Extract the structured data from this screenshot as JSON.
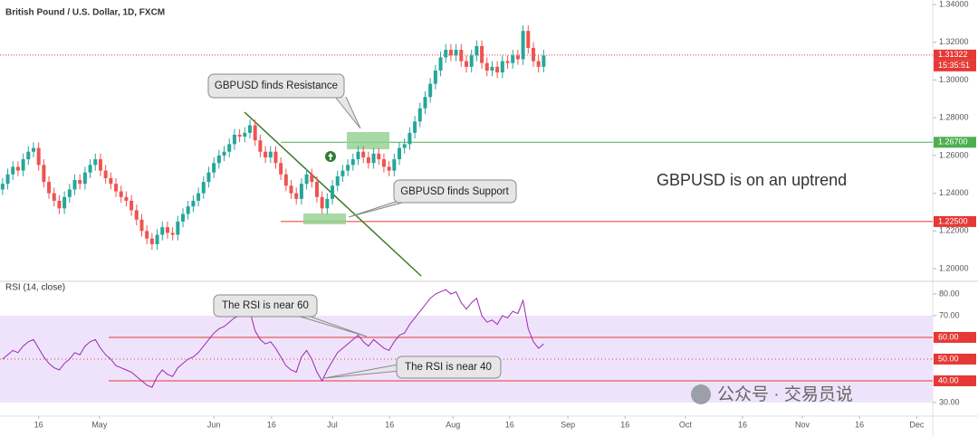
{
  "chart_data": [
    {
      "type": "candlestick",
      "title": "British Pound / U.S. Dollar, 1D, FXCM",
      "up_color": "#26a69a",
      "down_color": "#ef5350",
      "xlim": [
        -0.5,
        180.5
      ],
      "ylim": [
        1.1938,
        1.3424
      ],
      "yticks": [
        {
          "value": 1.34,
          "label": "1.34000"
        },
        {
          "value": 1.32,
          "label": "1.32000"
        },
        {
          "value": 1.3,
          "label": "1.30000"
        },
        {
          "value": 1.28,
          "label": "1.28000"
        },
        {
          "value": 1.26,
          "label": "1.26000"
        },
        {
          "value": 1.24,
          "label": "1.24000"
        },
        {
          "value": 1.22,
          "label": "1.22000"
        },
        {
          "value": 1.2,
          "label": "1.20000"
        }
      ],
      "open": [
        1.242,
        1.245,
        1.25,
        1.254,
        1.252,
        1.258,
        1.262,
        1.264,
        1.255,
        1.246,
        1.24,
        1.236,
        1.232,
        1.238,
        1.242,
        1.247,
        1.245,
        1.251,
        1.255,
        1.258,
        1.252,
        1.248,
        1.245,
        1.241,
        1.238,
        1.236,
        1.231,
        1.226,
        1.22,
        1.216,
        1.213,
        1.218,
        1.222,
        1.219,
        1.218,
        1.225,
        1.229,
        1.233,
        1.236,
        1.24,
        1.246,
        1.251,
        1.256,
        1.26,
        1.262,
        1.266,
        1.271,
        1.27,
        1.272,
        1.276,
        1.268,
        1.262,
        1.259,
        1.262,
        1.256,
        1.25,
        1.244,
        1.24,
        1.237,
        1.245,
        1.25,
        1.246,
        1.238,
        1.232,
        1.237,
        1.244,
        1.249,
        1.252,
        1.255,
        1.258,
        1.262,
        1.259,
        1.256,
        1.261,
        1.258,
        1.254,
        1.252,
        1.258,
        1.264,
        1.266,
        1.272,
        1.278,
        1.285,
        1.291,
        1.298,
        1.305,
        1.312,
        1.316,
        1.313,
        1.316,
        1.31,
        1.307,
        1.313,
        1.318,
        1.309,
        1.305,
        1.307,
        1.304,
        1.31,
        1.309,
        1.313,
        1.311,
        1.326,
        1.317,
        1.31,
        1.307
      ],
      "high": [
        1.248,
        1.253,
        1.257,
        1.257,
        1.261,
        1.265,
        1.267,
        1.267,
        1.258,
        1.249,
        1.243,
        1.239,
        1.241,
        1.245,
        1.25,
        1.25,
        1.254,
        1.258,
        1.261,
        1.261,
        1.255,
        1.251,
        1.248,
        1.244,
        1.241,
        1.239,
        1.234,
        1.229,
        1.223,
        1.219,
        1.221,
        1.225,
        1.225,
        1.222,
        1.228,
        1.232,
        1.236,
        1.239,
        1.243,
        1.249,
        1.254,
        1.259,
        1.263,
        1.265,
        1.269,
        1.274,
        1.274,
        1.275,
        1.279,
        1.279,
        1.271,
        1.265,
        1.265,
        1.265,
        1.259,
        1.253,
        1.247,
        1.243,
        1.248,
        1.253,
        1.253,
        1.249,
        1.241,
        1.24,
        1.247,
        1.252,
        1.255,
        1.258,
        1.261,
        1.265,
        1.265,
        1.262,
        1.264,
        1.264,
        1.261,
        1.257,
        1.261,
        1.267,
        1.269,
        1.275,
        1.281,
        1.288,
        1.294,
        1.301,
        1.308,
        1.315,
        1.319,
        1.319,
        1.319,
        1.319,
        1.313,
        1.316,
        1.321,
        1.321,
        1.312,
        1.31,
        1.31,
        1.313,
        1.313,
        1.316,
        1.316,
        1.329,
        1.329,
        1.32,
        1.313,
        1.316
      ],
      "low": [
        1.239,
        1.242,
        1.247,
        1.249,
        1.249,
        1.255,
        1.259,
        1.252,
        1.243,
        1.237,
        1.233,
        1.229,
        1.229,
        1.235,
        1.239,
        1.242,
        1.242,
        1.248,
        1.252,
        1.249,
        1.245,
        1.242,
        1.238,
        1.235,
        1.233,
        1.228,
        1.223,
        1.217,
        1.213,
        1.21,
        1.21,
        1.215,
        1.216,
        1.215,
        1.215,
        1.222,
        1.226,
        1.23,
        1.233,
        1.237,
        1.243,
        1.248,
        1.253,
        1.257,
        1.259,
        1.263,
        1.267,
        1.267,
        1.269,
        1.265,
        1.259,
        1.256,
        1.256,
        1.253,
        1.247,
        1.241,
        1.237,
        1.234,
        1.234,
        1.242,
        1.243,
        1.235,
        1.229,
        1.229,
        1.234,
        1.241,
        1.246,
        1.249,
        1.252,
        1.255,
        1.256,
        1.253,
        1.253,
        1.255,
        1.251,
        1.249,
        1.249,
        1.255,
        1.261,
        1.263,
        1.269,
        1.275,
        1.282,
        1.288,
        1.295,
        1.302,
        1.309,
        1.31,
        1.31,
        1.307,
        1.304,
        1.304,
        1.31,
        1.306,
        1.302,
        1.302,
        1.301,
        1.301,
        1.306,
        1.306,
        1.308,
        1.308,
        1.314,
        1.307,
        1.304,
        1.304
      ],
      "close": [
        1.245,
        1.25,
        1.254,
        1.252,
        1.258,
        1.262,
        1.264,
        1.255,
        1.246,
        1.24,
        1.236,
        1.232,
        1.238,
        1.242,
        1.247,
        1.245,
        1.251,
        1.255,
        1.258,
        1.252,
        1.248,
        1.245,
        1.241,
        1.238,
        1.236,
        1.231,
        1.226,
        1.22,
        1.216,
        1.213,
        1.218,
        1.222,
        1.219,
        1.218,
        1.225,
        1.229,
        1.233,
        1.236,
        1.24,
        1.246,
        1.251,
        1.256,
        1.26,
        1.262,
        1.266,
        1.271,
        1.27,
        1.272,
        1.276,
        1.268,
        1.262,
        1.259,
        1.262,
        1.256,
        1.25,
        1.244,
        1.24,
        1.237,
        1.245,
        1.25,
        1.246,
        1.238,
        1.232,
        1.237,
        1.244,
        1.249,
        1.252,
        1.255,
        1.258,
        1.262,
        1.259,
        1.256,
        1.261,
        1.258,
        1.254,
        1.252,
        1.258,
        1.264,
        1.266,
        1.272,
        1.278,
        1.285,
        1.291,
        1.298,
        1.305,
        1.312,
        1.316,
        1.313,
        1.316,
        1.31,
        1.307,
        1.313,
        1.318,
        1.309,
        1.305,
        1.307,
        1.304,
        1.31,
        1.309,
        1.313,
        1.311,
        1.326,
        1.317,
        1.31,
        1.307,
        1.313
      ],
      "levels": [
        {
          "value": 1.267,
          "label": "1.26700",
          "color": "#4caf50"
        },
        {
          "value": 1.225,
          "label": "1.22500",
          "color": "#e53935"
        }
      ],
      "last_price": {
        "value": 1.31322,
        "label": "1.31322",
        "color": "#e53935"
      },
      "countdown": "15:35:51",
      "annotations": [
        "GBPUSD finds Resistance",
        "GBPUSD finds Support",
        "GBPUSD is on an uptrend"
      ]
    },
    {
      "type": "line",
      "title": "RSI (14, close)",
      "color": "#9c27b0",
      "xlim": [
        -0.5,
        180.5
      ],
      "ylim": [
        23.75,
        85.4
      ],
      "yticks": [
        {
          "value": 80,
          "label": "80.00"
        },
        {
          "value": 70,
          "label": "70.00"
        },
        {
          "value": 30,
          "label": "30.00"
        }
      ],
      "xticks": [
        {
          "value": 7,
          "label": "16"
        },
        {
          "value": 18.8,
          "label": "May"
        },
        {
          "value": 41,
          "label": "Jun"
        },
        {
          "value": 52.2,
          "label": "16"
        },
        {
          "value": 64,
          "label": "Jul"
        },
        {
          "value": 75.1,
          "label": "16"
        },
        {
          "value": 87.4,
          "label": "Aug"
        },
        {
          "value": 98.4,
          "label": "16"
        },
        {
          "value": 109.7,
          "label": "Sep"
        },
        {
          "value": 120.8,
          "label": "16"
        },
        {
          "value": 132.5,
          "label": "Oct"
        },
        {
          "value": 143.6,
          "label": "16"
        },
        {
          "value": 155.2,
          "label": "Nov"
        },
        {
          "value": 166.3,
          "label": "16"
        },
        {
          "value": 177.4,
          "label": "Dec"
        }
      ],
      "values": [
        50,
        52,
        54,
        53,
        56,
        58,
        59,
        55,
        51,
        48,
        46,
        45,
        48,
        50,
        53,
        52,
        56,
        58,
        59,
        55,
        52,
        50,
        47,
        46,
        45,
        44,
        42,
        40,
        38,
        37,
        42,
        45,
        43,
        42,
        46,
        48,
        50,
        51,
        53,
        56,
        59,
        62,
        64,
        65,
        67,
        69,
        70,
        72,
        72,
        63,
        59,
        57,
        58,
        55,
        51,
        47,
        45,
        44,
        51,
        54,
        50,
        44,
        40,
        45,
        49,
        53,
        55,
        57,
        59,
        61,
        58,
        56,
        59,
        57,
        55,
        54,
        58,
        61,
        62,
        66,
        69,
        72,
        75,
        78,
        80,
        81,
        82,
        80,
        81,
        76,
        73,
        76,
        78,
        70,
        67,
        68,
        66,
        70,
        69,
        72,
        71,
        77,
        64,
        58,
        55,
        57
      ],
      "band": [
        30,
        70
      ],
      "band_color": "#efe3fb",
      "levels": [
        {
          "value": 60,
          "label": "60.00"
        },
        {
          "value": 40,
          "label": "40.00"
        }
      ],
      "level_color": "#e53935",
      "midline": {
        "value": 50,
        "label": "50.00"
      },
      "annotations": [
        "The RSI is near 60",
        "The RSI is near 40"
      ]
    }
  ],
  "watermark": "公众号 · 交易员说"
}
